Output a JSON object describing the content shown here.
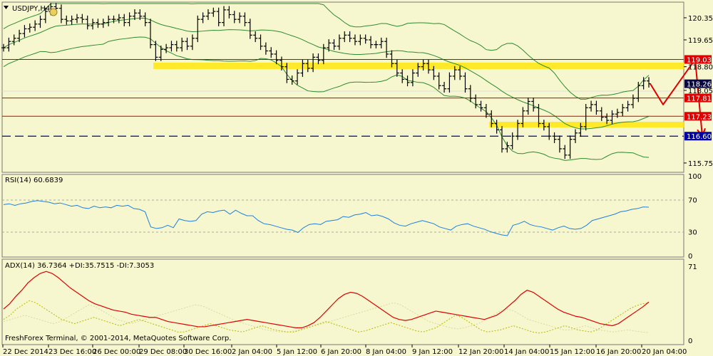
{
  "title": "USDJPY,H4",
  "copyright": "FreshForex Terminal, © 2001-2014, MetaQuotes Software Corp.",
  "colors": {
    "background": "#f7f7cf",
    "candle": "#000000",
    "bollinger": "#2e8b2e",
    "resistance_line": "#cc0000",
    "support_dash": "#000099",
    "highlight": "#ffe600",
    "rsi_line": "#1e7fe0",
    "adx_line": "#e00000",
    "plus_di": "#b8b800",
    "minus_di": "#d8d8a0",
    "forecast_arrow": "#e00000",
    "price_tag_red": "#e00000",
    "price_tag_blue": "#0000aa"
  },
  "chart_data": [
    {
      "type": "candlestick",
      "title": "USDJPY,H4",
      "ylim": [
        115.5,
        120.8
      ],
      "yticks": [
        "120.35",
        "119.65",
        "118.80",
        "118.05",
        "115.75"
      ],
      "xticks": [
        "22 Dec 2014",
        "23 Dec 16:00",
        "26 Dec 00:00",
        "29 Dec 08:00",
        "30 Dec 16:00",
        "2 Jan 04:00",
        "5 Jan 12:00",
        "6 Jan 20:00",
        "8 Jan 04:00",
        "9 Jan 12:00",
        "12 Jan 20:00",
        "14 Jan 04:00",
        "15 Jan 12:00",
        "16 Jan 20:00",
        "20 Jan 04:00"
      ],
      "horizontal_levels": [
        {
          "label": "119.03",
          "value": 119.03,
          "style": "solid-red",
          "tag": "red"
        },
        {
          "label": "117.81",
          "value": 117.81,
          "style": "solid-red",
          "tag": "red"
        },
        {
          "label": "117.23",
          "value": 117.23,
          "style": "solid-red",
          "tag": "red"
        },
        {
          "label": "116.60",
          "value": 116.6,
          "style": "dashed-blue",
          "tag": "blue"
        }
      ],
      "current_price": "118.26",
      "closes": [
        119.4,
        119.6,
        119.7,
        119.85,
        120.0,
        120.05,
        120.15,
        120.3,
        120.55,
        120.7,
        120.65,
        120.3,
        120.25,
        120.3,
        120.35,
        120.3,
        120.1,
        120.2,
        120.15,
        120.2,
        120.3,
        120.3,
        120.35,
        120.2,
        120.4,
        120.5,
        120.4,
        120.2,
        119.5,
        119.1,
        119.35,
        119.4,
        119.5,
        119.4,
        119.6,
        119.45,
        119.7,
        120.3,
        120.4,
        120.5,
        120.55,
        120.2,
        120.6,
        120.45,
        120.3,
        120.4,
        120.2,
        119.8,
        119.7,
        119.45,
        119.3,
        119.2,
        119.0,
        118.8,
        118.4,
        118.35,
        118.6,
        118.9,
        118.75,
        119.1,
        119.0,
        119.4,
        119.55,
        119.45,
        119.7,
        119.8,
        119.7,
        119.6,
        119.7,
        119.65,
        119.5,
        119.5,
        119.6,
        119.2,
        118.9,
        118.6,
        118.4,
        118.3,
        118.6,
        118.8,
        118.9,
        118.7,
        118.5,
        118.2,
        118.1,
        118.5,
        118.7,
        118.5,
        118.1,
        117.8,
        117.6,
        117.5,
        117.3,
        117.0,
        116.8,
        116.2,
        116.3,
        116.6,
        117.0,
        117.4,
        117.7,
        117.5,
        117.0,
        116.9,
        116.6,
        116.5,
        116.2,
        116.0,
        116.5,
        116.7,
        116.9,
        117.5,
        117.6,
        117.4,
        117.2,
        117.1,
        117.3,
        117.35,
        117.5,
        117.6,
        117.8,
        118.2,
        118.35,
        118.26
      ],
      "forecast_path": [
        118.26,
        117.6,
        119.03,
        116.6
      ]
    },
    {
      "type": "line",
      "title": "RSI(14) 60.6839",
      "ylim": [
        0,
        100
      ],
      "yticks": [
        "100",
        "70",
        "30",
        "0"
      ],
      "levels": [
        70,
        30
      ],
      "values": [
        64,
        65,
        63,
        65,
        66,
        68,
        69,
        68,
        67,
        65,
        66,
        64,
        62,
        63,
        60,
        59,
        62,
        60,
        61,
        60,
        63,
        62,
        63,
        59,
        58,
        55,
        36,
        34,
        35,
        38,
        35,
        46,
        44,
        43,
        44,
        52,
        55,
        54,
        56,
        57,
        52,
        57,
        53,
        50,
        50,
        44,
        40,
        39,
        37,
        35,
        33,
        32,
        29,
        35,
        39,
        40,
        39,
        43,
        44,
        45,
        49,
        48,
        51,
        52,
        54,
        50,
        51,
        49,
        46,
        41,
        38,
        37,
        40,
        42,
        44,
        42,
        40,
        36,
        34,
        32,
        37,
        39,
        40,
        37,
        35,
        33,
        30,
        28,
        26,
        25,
        38,
        40,
        43,
        39,
        37,
        36,
        34,
        32,
        35,
        37,
        34,
        33,
        34,
        38,
        44,
        46,
        48,
        50,
        52,
        55,
        56,
        58,
        59,
        61,
        60.68
      ]
    },
    {
      "type": "line",
      "title": "ADX(14) 36.7364 +DI:35.7515 -DI:7.3053",
      "ylim": [
        0,
        75
      ],
      "yticks": [
        "71",
        "0"
      ],
      "series": [
        {
          "name": "ADX",
          "values": [
            30,
            35,
            42,
            48,
            55,
            60,
            64,
            66,
            64,
            60,
            55,
            50,
            46,
            42,
            38,
            35,
            33,
            31,
            29,
            28,
            27,
            25,
            24,
            23,
            22,
            22,
            20,
            18,
            17,
            16,
            15,
            14,
            13,
            13,
            14,
            15,
            16,
            17,
            18,
            19,
            20,
            19,
            18,
            17,
            16,
            15,
            14,
            13,
            12,
            12,
            14,
            17,
            22,
            28,
            34,
            40,
            44,
            46,
            45,
            42,
            38,
            34,
            30,
            26,
            22,
            20,
            19,
            20,
            22,
            24,
            26,
            28,
            27,
            26,
            25,
            24,
            23,
            22,
            21,
            20,
            22,
            24,
            28,
            33,
            38,
            44,
            48,
            46,
            42,
            38,
            34,
            30,
            27,
            25,
            23,
            22,
            20,
            18,
            16,
            15,
            14,
            16,
            20,
            24,
            28,
            32,
            36.74
          ]
        },
        {
          "name": "+DI",
          "values": [
            20,
            24,
            30,
            34,
            38,
            36,
            32,
            28,
            24,
            20,
            18,
            16,
            18,
            20,
            22,
            20,
            18,
            16,
            14,
            16,
            18,
            20,
            18,
            16,
            14,
            12,
            10,
            8,
            8,
            10,
            12,
            14,
            16,
            14,
            12,
            10,
            9,
            8,
            10,
            12,
            14,
            12,
            10,
            9,
            8,
            8,
            10,
            12,
            14,
            16,
            18,
            16,
            14,
            12,
            10,
            8,
            9,
            11,
            13,
            15,
            17,
            15,
            13,
            11,
            9,
            8,
            10,
            12,
            16,
            20,
            24,
            22,
            18,
            14,
            10,
            8,
            9,
            10,
            12,
            14,
            12,
            10,
            8,
            7,
            8,
            10,
            12,
            14,
            12,
            10,
            9,
            8,
            10,
            14,
            18,
            22,
            26,
            30,
            33,
            35,
            35.75
          ]
        },
        {
          "name": "-DI",
          "values": [
            18,
            20,
            22,
            24,
            22,
            20,
            18,
            16,
            18,
            22,
            26,
            30,
            34,
            32,
            28,
            24,
            20,
            18,
            16,
            18,
            20,
            22,
            24,
            26,
            28,
            30,
            32,
            34,
            33,
            30,
            27,
            24,
            21,
            18,
            16,
            14,
            12,
            10,
            9,
            8,
            8,
            9,
            10,
            12,
            14,
            16,
            18,
            20,
            22,
            24,
            26,
            28,
            30,
            32,
            34,
            36,
            34,
            30,
            26,
            22,
            18,
            16,
            14,
            12,
            11,
            12,
            14,
            16,
            20,
            24,
            28,
            30,
            28,
            24,
            20,
            18,
            16,
            14,
            12,
            10,
            10,
            12,
            14,
            12,
            10,
            9,
            8,
            9,
            10,
            9,
            8,
            7.3
          ]
        }
      ]
    }
  ]
}
